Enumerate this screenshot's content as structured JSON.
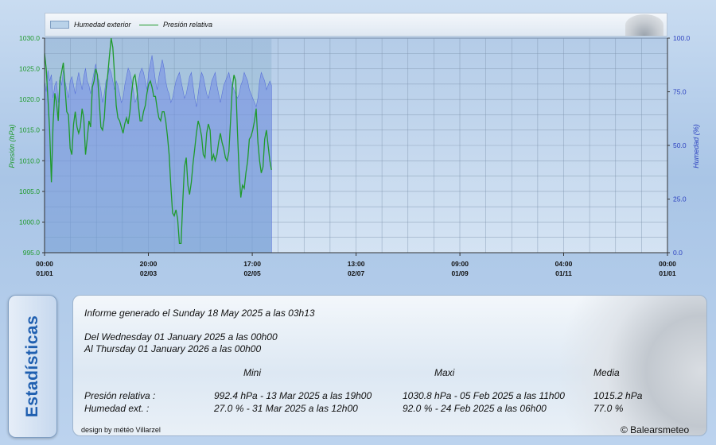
{
  "chart_data": {
    "type": "line",
    "legend": [
      {
        "name": "Humedad exterior",
        "kind": "area",
        "color": "#6d86e8"
      },
      {
        "name": "Presión relativa",
        "kind": "line",
        "color": "#1f9a2c"
      }
    ],
    "legend_placement": "top",
    "y_left": {
      "label": "Presión (hPa)",
      "range": [
        995.0,
        1030.0
      ],
      "ticks": [
        "995.0",
        "1000.0",
        "1005.0",
        "1010.0",
        "1015.0",
        "1020.0",
        "1025.0",
        "1030.0"
      ],
      "color": "#1f9a2c"
    },
    "y_right": {
      "label": "Humedad (%)",
      "range": [
        0.0,
        100.0
      ],
      "ticks": [
        "0.0",
        "25.0",
        "50.0",
        "75.0",
        "100.0"
      ],
      "color": "#2a3fbf"
    },
    "x_ticks": [
      {
        "time": "00:00",
        "date": "01/01",
        "day": 0
      },
      {
        "time": "20:00",
        "date": "02/03",
        "day": 60.83
      },
      {
        "time": "17:00",
        "date": "02/05",
        "day": 121.71
      },
      {
        "time": "13:00",
        "date": "02/07",
        "day": 182.54
      },
      {
        "time": "09:00",
        "date": "01/09",
        "day": 243.38
      },
      {
        "time": "04:00",
        "date": "01/11",
        "day": 304.17
      },
      {
        "time": "00:00",
        "date": "01/01",
        "day": 365
      }
    ],
    "x_range_days": [
      0,
      365
    ],
    "grid": true,
    "series": [
      {
        "name": "Presión relativa",
        "axis": "left",
        "x": [
          0,
          1,
          2,
          3,
          4,
          5,
          6,
          7,
          8,
          9,
          10,
          11,
          12,
          13,
          14,
          15,
          16,
          17,
          18,
          19,
          20,
          21,
          22,
          23,
          24,
          25,
          26,
          27,
          28,
          29,
          30,
          31,
          32,
          33,
          34,
          35,
          36,
          37,
          38,
          39,
          40,
          41,
          42,
          43,
          44,
          45,
          46,
          47,
          48,
          49,
          50,
          51,
          52,
          53,
          54,
          55,
          56,
          57,
          58,
          59,
          60,
          61,
          62,
          63,
          64,
          65,
          66,
          67,
          68,
          69,
          70,
          71,
          72,
          73,
          74,
          75,
          76,
          77,
          78,
          79,
          80,
          81,
          82,
          83,
          84,
          85,
          86,
          87,
          88,
          89,
          90,
          91,
          92,
          93,
          94,
          95,
          96,
          97,
          98,
          99,
          100,
          101,
          102,
          103,
          104,
          105,
          106,
          107,
          108,
          109,
          110,
          111,
          112,
          113,
          114,
          115,
          116,
          117,
          118,
          119,
          120,
          121,
          122,
          123,
          124,
          125,
          126,
          127,
          128,
          129,
          130,
          131,
          132,
          133
        ],
        "y": [
          1027.5,
          1025.0,
          1020.0,
          1015.0,
          1006.5,
          1016.0,
          1021.0,
          1019.5,
          1016.5,
          1023.0,
          1024.5,
          1026.0,
          1022.0,
          1018.0,
          1017.5,
          1012.0,
          1011.0,
          1016.0,
          1018.0,
          1015.5,
          1014.5,
          1015.5,
          1018.5,
          1017.0,
          1011.0,
          1013.5,
          1016.5,
          1015.5,
          1022.0,
          1023.0,
          1025.0,
          1024.0,
          1020.0,
          1015.5,
          1015.0,
          1017.0,
          1021.5,
          1024.0,
          1027.0,
          1030.0,
          1028.5,
          1024.0,
          1019.0,
          1017.0,
          1016.5,
          1015.5,
          1014.5,
          1016.0,
          1017.0,
          1016.0,
          1018.0,
          1021.0,
          1023.5,
          1024.0,
          1022.0,
          1019.0,
          1016.5,
          1016.5,
          1018.0,
          1019.0,
          1021.0,
          1022.5,
          1023.0,
          1022.0,
          1020.5,
          1020.5,
          1018.5,
          1017.0,
          1016.5,
          1018.0,
          1018.0,
          1016.5,
          1014.0,
          1011.0,
          1006.0,
          1001.5,
          1001.0,
          1002.0,
          1000.5,
          996.5,
          996.5,
          1003.5,
          1009.0,
          1010.5,
          1006.0,
          1004.5,
          1006.5,
          1009.5,
          1012.0,
          1014.5,
          1016.5,
          1015.5,
          1014.0,
          1011.0,
          1010.5,
          1014.5,
          1016.0,
          1015.0,
          1010.0,
          1011.0,
          1010.0,
          1011.0,
          1013.0,
          1014.5,
          1013.0,
          1012.0,
          1010.5,
          1010.0,
          1011.5,
          1016.5,
          1022.0,
          1024.0,
          1023.0,
          1015.0,
          1008.0,
          1004.0,
          1006.0,
          1005.5,
          1008.0,
          1010.0,
          1013.5,
          1014.0,
          1015.0,
          1016.5,
          1018.5,
          1013.0,
          1010.0,
          1008.0,
          1009.0,
          1013.5,
          1015.0,
          1012.5,
          1010.0,
          1008.5
        ]
      },
      {
        "name": "Humedad exterior",
        "axis": "right",
        "x": [
          0,
          1,
          2,
          3,
          4,
          5,
          6,
          7,
          8,
          9,
          10,
          11,
          12,
          13,
          14,
          15,
          16,
          17,
          18,
          19,
          20,
          21,
          22,
          23,
          24,
          25,
          26,
          27,
          28,
          29,
          30,
          31,
          32,
          33,
          34,
          35,
          36,
          37,
          38,
          39,
          40,
          41,
          42,
          43,
          44,
          45,
          46,
          47,
          48,
          49,
          50,
          51,
          52,
          53,
          54,
          55,
          56,
          57,
          58,
          59,
          60,
          61,
          62,
          63,
          64,
          65,
          66,
          67,
          68,
          69,
          70,
          71,
          72,
          73,
          74,
          75,
          76,
          77,
          78,
          79,
          80,
          81,
          82,
          83,
          84,
          85,
          86,
          87,
          88,
          89,
          90,
          91,
          92,
          93,
          94,
          95,
          96,
          97,
          98,
          99,
          100,
          101,
          102,
          103,
          104,
          105,
          106,
          107,
          108,
          109,
          110,
          111,
          112,
          113,
          114,
          115,
          116,
          117,
          118,
          119,
          120,
          121,
          122,
          123,
          124,
          125,
          126,
          127,
          128,
          129,
          130,
          131,
          132,
          133
        ],
        "y": [
          80,
          75,
          85,
          80,
          83,
          72,
          78,
          80,
          70,
          82,
          78,
          85,
          80,
          76,
          72,
          80,
          82,
          78,
          74,
          80,
          84,
          80,
          76,
          82,
          86,
          80,
          78,
          74,
          80,
          84,
          88,
          82,
          80,
          76,
          70,
          74,
          80,
          82,
          86,
          84,
          80,
          76,
          80,
          78,
          74,
          70,
          72,
          78,
          82,
          86,
          84,
          80,
          76,
          70,
          72,
          80,
          84,
          86,
          84,
          80,
          76,
          84,
          88,
          92,
          86,
          80,
          76,
          82,
          86,
          90,
          86,
          80,
          76,
          74,
          70,
          72,
          76,
          80,
          82,
          84,
          80,
          76,
          72,
          74,
          78,
          82,
          84,
          78,
          72,
          68,
          74,
          80,
          84,
          82,
          78,
          74,
          72,
          76,
          80,
          82,
          84,
          78,
          74,
          70,
          74,
          78,
          80,
          82,
          84,
          80,
          78,
          76,
          74,
          72,
          74,
          78,
          80,
          84,
          82,
          80,
          76,
          74,
          72,
          70,
          68,
          72,
          80,
          84,
          82,
          80,
          76,
          78,
          80,
          78
        ]
      }
    ]
  },
  "stats": {
    "tab_label": "Estadísticas",
    "report_line": "Informe generado el Sunday 18 May 2025 a las 03h13",
    "from_line": "Del Wednesday 01 January 2025 a las 00h00",
    "to_line": "Al Thursday 01 January 2026 a las 00h00",
    "columns": [
      "Mini",
      "Maxi",
      "Media"
    ],
    "rows": [
      {
        "label": "Presión relativa :",
        "mini": "992.4 hPa - 13 Mar 2025 a las 19h00",
        "maxi": "1030.8 hPa - 05 Feb 2025 a las 11h00",
        "media": "1015.2 hPa"
      },
      {
        "label": "Humedad ext. :",
        "mini": "27.0 % - 31 Mar 2025 a las 12h00",
        "maxi": "92.0 % - 24 Feb 2025 a las 06h00",
        "media": "77.0 %"
      }
    ],
    "credit": "design by météo Villarzel",
    "copyright": "© Balearsmeteo"
  }
}
